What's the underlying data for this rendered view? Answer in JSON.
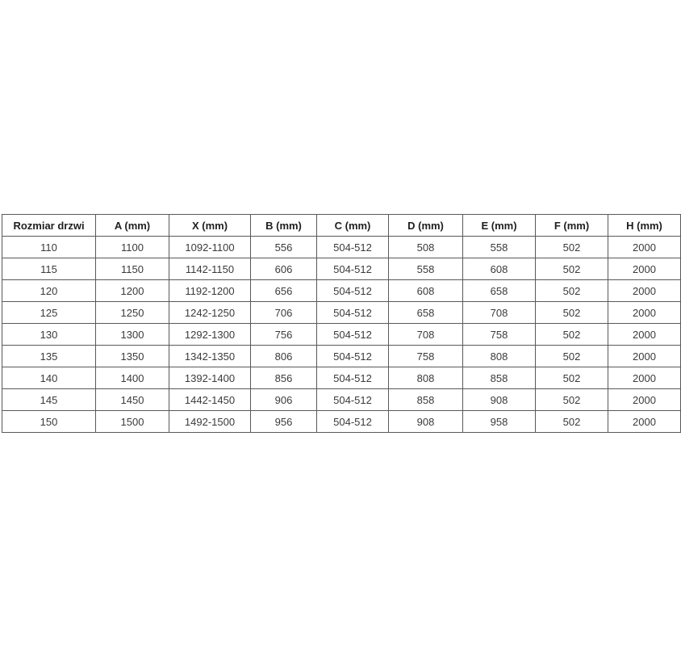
{
  "page": {
    "background_color": "#ffffff",
    "border_color": "#595959",
    "text_color": "#3a3a3a"
  },
  "table": {
    "name": "door-dimensions-table",
    "columns": [
      {
        "label": "Rozmiar drzwi",
        "width": 111
      },
      {
        "label": "A (mm)",
        "width": 86
      },
      {
        "label": "X (mm)",
        "width": 96
      },
      {
        "label": "B (mm)",
        "width": 77
      },
      {
        "label": "C (mm)",
        "width": 84
      },
      {
        "label": "D (mm)",
        "width": 87
      },
      {
        "label": "E (mm)",
        "width": 85
      },
      {
        "label": "F (mm)",
        "width": 85
      },
      {
        "label": "H (mm)",
        "width": 85
      }
    ],
    "rows": [
      [
        "110",
        "1100",
        "1092-1100",
        "556",
        "504-512",
        "508",
        "558",
        "502",
        "2000"
      ],
      [
        "115",
        "1150",
        "1142-1150",
        "606",
        "504-512",
        "558",
        "608",
        "502",
        "2000"
      ],
      [
        "120",
        "1200",
        "1192-1200",
        "656",
        "504-512",
        "608",
        "658",
        "502",
        "2000"
      ],
      [
        "125",
        "1250",
        "1242-1250",
        "706",
        "504-512",
        "658",
        "708",
        "502",
        "2000"
      ],
      [
        "130",
        "1300",
        "1292-1300",
        "756",
        "504-512",
        "708",
        "758",
        "502",
        "2000"
      ],
      [
        "135",
        "1350",
        "1342-1350",
        "806",
        "504-512",
        "758",
        "808",
        "502",
        "2000"
      ],
      [
        "140",
        "1400",
        "1392-1400",
        "856",
        "504-512",
        "808",
        "858",
        "502",
        "2000"
      ],
      [
        "145",
        "1450",
        "1442-1450",
        "906",
        "504-512",
        "858",
        "908",
        "502",
        "2000"
      ],
      [
        "150",
        "1500",
        "1492-1500",
        "956",
        "504-512",
        "908",
        "958",
        "502",
        "2000"
      ]
    ]
  }
}
